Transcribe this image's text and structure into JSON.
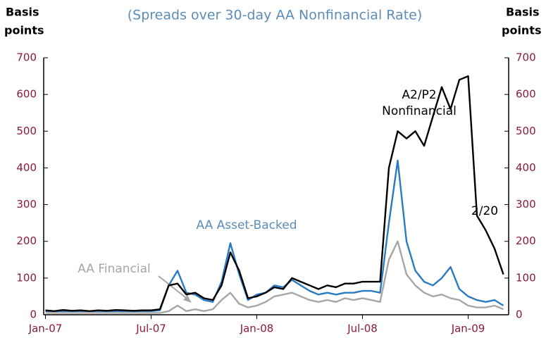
{
  "chart_data": {
    "type": "line",
    "title": "(Spreads over 30-day AA Nonfinancial Rate)",
    "y_label": [
      "Basis",
      "points"
    ],
    "y2_label": [
      "Basis",
      "points"
    ],
    "x": [
      0,
      0.5,
      1,
      1.5,
      2,
      2.5,
      3,
      3.5,
      4,
      4.5,
      5,
      5.5,
      6,
      6.5,
      7,
      7.5,
      8,
      8.5,
      9,
      9.5,
      10,
      10.5,
      11,
      11.5,
      12,
      12.5,
      13,
      13.5,
      14,
      14.5,
      15,
      15.5,
      16,
      16.5,
      17,
      17.5,
      18,
      18.5,
      19,
      19.5,
      20,
      20.5,
      21,
      21.5,
      22,
      22.5,
      23,
      23.5,
      24,
      24.5,
      25,
      25.5,
      26
    ],
    "xlim": [
      -0.1,
      26.3
    ],
    "xticks": [
      {
        "value": 0,
        "label": "Jan-07"
      },
      {
        "value": 6,
        "label": "Jul-07"
      },
      {
        "value": 12,
        "label": "Jan-08"
      },
      {
        "value": 18,
        "label": "Jul-08"
      },
      {
        "value": 24,
        "label": "Jan-09"
      }
    ],
    "ylim": [
      0,
      700
    ],
    "yticks": [
      0,
      100,
      200,
      300,
      400,
      500,
      600,
      700
    ],
    "y2lim": [
      0,
      700
    ],
    "y2ticks": [
      0,
      100,
      200,
      300,
      400,
      500,
      600,
      700
    ],
    "series": [
      {
        "name": "AA Financial",
        "color": "#a6a6a6",
        "values": [
          5,
          5,
          5,
          5,
          5,
          5,
          5,
          5,
          5,
          5,
          5,
          5,
          5,
          5,
          10,
          25,
          10,
          15,
          10,
          15,
          40,
          60,
          30,
          20,
          25,
          35,
          50,
          55,
          60,
          50,
          40,
          35,
          40,
          35,
          45,
          40,
          45,
          40,
          35,
          150,
          200,
          110,
          80,
          60,
          50,
          55,
          45,
          40,
          25,
          20,
          20,
          25,
          15
        ]
      },
      {
        "name": "AA Asset-Backed",
        "color": "#2a7bc1",
        "values": [
          10,
          10,
          10,
          10,
          10,
          10,
          10,
          10,
          10,
          10,
          10,
          10,
          10,
          12,
          80,
          120,
          60,
          55,
          40,
          35,
          90,
          195,
          110,
          40,
          55,
          60,
          80,
          75,
          95,
          80,
          65,
          55,
          60,
          55,
          60,
          60,
          65,
          65,
          60,
          250,
          420,
          200,
          120,
          90,
          80,
          100,
          130,
          70,
          50,
          40,
          35,
          40,
          25
        ]
      },
      {
        "name": "A2/P2 Nonfinancial",
        "color": "#000000",
        "values": [
          12,
          10,
          13,
          11,
          12,
          10,
          12,
          11,
          13,
          12,
          11,
          12,
          12,
          15,
          80,
          85,
          55,
          60,
          45,
          40,
          80,
          170,
          120,
          45,
          50,
          60,
          75,
          70,
          100,
          90,
          80,
          70,
          80,
          75,
          85,
          85,
          90,
          90,
          90,
          400,
          500,
          480,
          500,
          460,
          540,
          620,
          560,
          640,
          650,
          270,
          230,
          180,
          110
        ]
      }
    ],
    "annotations": [
      [
        "A2/P2",
        "Nonfinancial"
      ],
      [
        "AA Asset-Backed"
      ],
      [
        "AA Financial"
      ],
      [
        "2/20"
      ]
    ]
  }
}
